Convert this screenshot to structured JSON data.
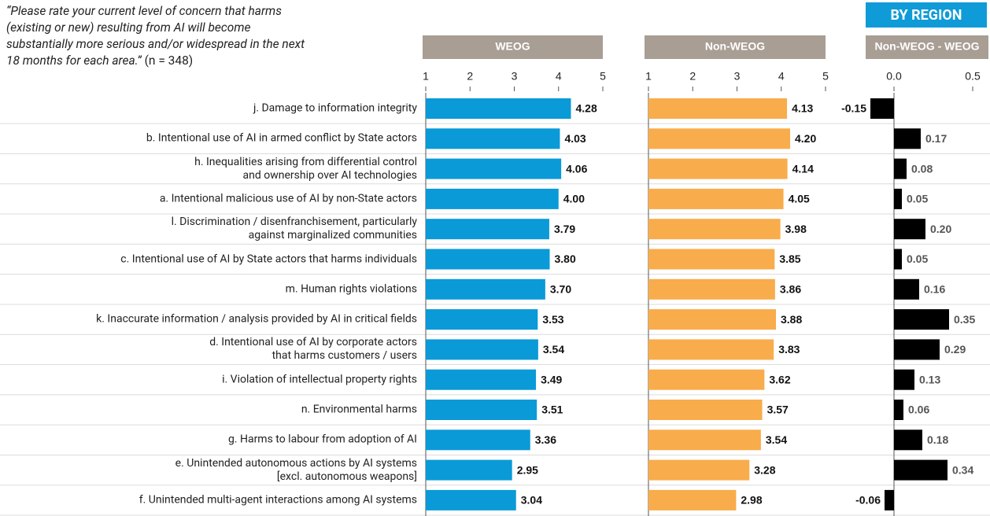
{
  "question": "“Please rate your current level of concern that harms\n(existing or new) resulting from AI will become\nsubstantially more serious and/or widespread in the next\n18 months for each area.”",
  "n": "(n = 348)",
  "badge": "BY REGION",
  "chart_data": [
    {
      "type": "bar",
      "orientation": "horizontal",
      "title": "WEOG",
      "color": "#0a9ad7",
      "categories": [
        "j. Damage to information integrity",
        "b. Intentional use of AI in armed conflict by State actors",
        "h. Inequalities arising from differential control\nand ownership over AI technologies",
        "a. Intentional malicious use of AI by non-State actors",
        "l. Discrimination / disenfranchisement, particularly\nagainst marginalized communities",
        "c. Intentional use of AI by State actors that harms individuals",
        "m. Human rights violations",
        "k. Inaccurate information / analysis provided by AI in critical fields",
        "d. Intentional use of AI by corporate actors\nthat harms customers / users",
        "i. Violation of intellectual property rights",
        "n. Environmental harms",
        "g. Harms to labour from adoption of AI",
        "e. Unintended autonomous actions by AI systems\n[excl. autonomous weapons]",
        "f. Unintended multi-agent interactions among AI systems"
      ],
      "values": [
        4.28,
        4.03,
        4.06,
        4.0,
        3.79,
        3.8,
        3.7,
        3.53,
        3.54,
        3.49,
        3.51,
        3.36,
        2.95,
        3.04
      ],
      "value_labels": [
        "4.28",
        "4.03",
        "4.06",
        "4.00",
        "3.79",
        "3.80",
        "3.70",
        "3.53",
        "3.54",
        "3.49",
        "3.51",
        "3.36",
        "2.95",
        "3.04"
      ],
      "xlim": [
        1,
        5
      ],
      "xticks": [
        1,
        2,
        3,
        4,
        5
      ]
    },
    {
      "type": "bar",
      "orientation": "horizontal",
      "title": "Non-WEOG",
      "color": "#f9ac4b",
      "values": [
        4.13,
        4.2,
        4.14,
        4.05,
        3.98,
        3.85,
        3.86,
        3.88,
        3.83,
        3.62,
        3.57,
        3.54,
        3.28,
        2.98
      ],
      "value_labels": [
        "4.13",
        "4.20",
        "4.14",
        "4.05",
        "3.98",
        "3.85",
        "3.86",
        "3.88",
        "3.83",
        "3.62",
        "3.57",
        "3.54",
        "3.28",
        "2.98"
      ],
      "xlim": [
        1,
        5
      ],
      "xticks": [
        1,
        2,
        3,
        4,
        5
      ]
    },
    {
      "type": "bar",
      "orientation": "horizontal",
      "title": "Non-WEOG - WEOG",
      "color": "#000000",
      "values": [
        -0.15,
        0.17,
        0.08,
        0.05,
        0.2,
        0.05,
        0.16,
        0.35,
        0.29,
        0.13,
        0.06,
        0.18,
        0.34,
        -0.06
      ],
      "value_labels": [
        "-0.15",
        "0.17",
        "0.08",
        "0.05",
        "0.20",
        "0.05",
        "0.16",
        "0.35",
        "0.29",
        "0.13",
        "0.06",
        "0.18",
        "0.34",
        "-0.06"
      ],
      "xlim": [
        -0.2,
        0.6
      ],
      "xticks": [
        {
          "value": 0,
          "label": "0.0"
        },
        {
          "value": 0.5,
          "label": "0.5"
        }
      ]
    }
  ]
}
